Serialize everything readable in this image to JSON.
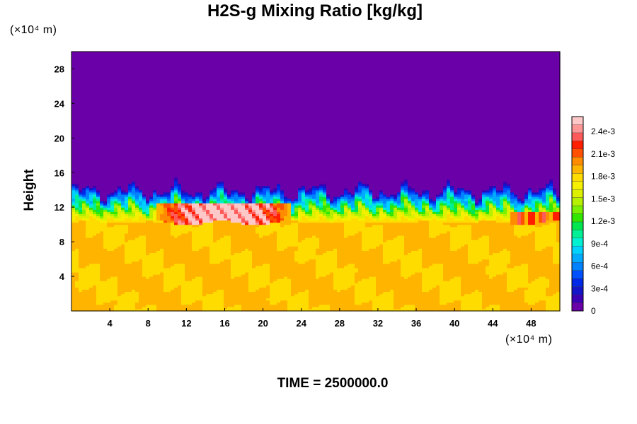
{
  "chart_data": {
    "type": "heatmap",
    "title": "H2S-g Mixing Ratio [kg/kg]",
    "ylabel": "Height",
    "x_units": "(×10⁴ m)",
    "y_units": "(×10⁴ m)",
    "footer": "TIME = 2500000.0",
    "xlim": [
      0,
      51
    ],
    "ylim": [
      0,
      30
    ],
    "x_ticks": [
      4,
      8,
      12,
      16,
      20,
      24,
      28,
      32,
      36,
      40,
      44,
      48
    ],
    "y_ticks": [
      4,
      8,
      12,
      16,
      20,
      24,
      28
    ],
    "colorbar": {
      "min": 0,
      "max": 0.0026,
      "ticks": [
        {
          "value": 0,
          "label": "0"
        },
        {
          "value": 0.0003,
          "label": "3e-4"
        },
        {
          "value": 0.0006,
          "label": "6e-4"
        },
        {
          "value": 0.0009,
          "label": "9e-4"
        },
        {
          "value": 0.0012,
          "label": "1.2e-3"
        },
        {
          "value": 0.0015,
          "label": "1.5e-3"
        },
        {
          "value": 0.0018,
          "label": "1.8e-3"
        },
        {
          "value": 0.0021,
          "label": "2.1e-3"
        },
        {
          "value": 0.0024,
          "label": "2.4e-3"
        }
      ],
      "colors": [
        "#6a00a8",
        "#3c00b4",
        "#1414c8",
        "#0028e6",
        "#0050ff",
        "#0082ff",
        "#00aaff",
        "#00d2ff",
        "#00f0d2",
        "#00f096",
        "#00e650",
        "#32e600",
        "#78f000",
        "#b4f000",
        "#dcf000",
        "#f5f000",
        "#ffdc00",
        "#ffb400",
        "#ff8c00",
        "#ff5000",
        "#ff1e00",
        "#ff5a5a",
        "#ff9696",
        "#ffc8c8"
      ]
    },
    "regions": {
      "upper_layer": {
        "y_range": [
          13.5,
          30
        ],
        "value": 0
      },
      "lower_layer": {
        "y_range": [
          0,
          10
        ],
        "value": 0.00185
      },
      "mixing_zone": {
        "y_range": [
          10,
          14
        ],
        "value_range": [
          0,
          0.0026
        ]
      },
      "hotspot": {
        "x_range": [
          9,
          23
        ],
        "y_range": [
          9.8,
          12.5
        ],
        "value": 0.0026
      }
    },
    "grid": false,
    "legend": "colorbar-right"
  },
  "colors": {
    "background": "#ffffff",
    "frame": "#000000"
  }
}
